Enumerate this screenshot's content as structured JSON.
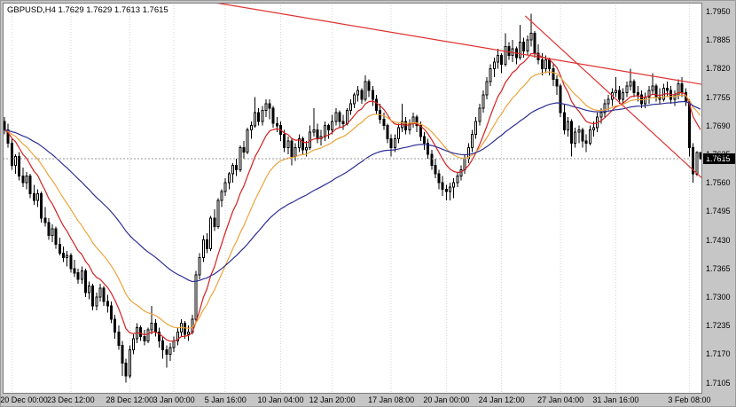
{
  "header": {
    "text": "GBPUSD,H4 1.7629 1.7629 1.7613 1.7615"
  },
  "colors": {
    "background": "#c6c6c6",
    "plot_bg": "#ffffff",
    "candle_up": "#ffffff",
    "candle_down": "#000000",
    "candle_outline": "#000000",
    "grid": "#d6d6d6",
    "bid_line": "#9a9a9a",
    "border": "#7a7a7a",
    "tag_bg": "#000000",
    "tag_fg": "#ffffff"
  },
  "chart_data": {
    "type": "candlestick",
    "symbol": "GBPUSD",
    "timeframe": "H4",
    "current": {
      "open": "1.7629",
      "high": "1.7629",
      "low": "1.7613",
      "close": "1.7615"
    },
    "bid": 1.7615,
    "price_axis": {
      "top": 1.797,
      "bottom": 1.708,
      "labels": [
        "1.7950",
        "1.7885",
        "1.7820",
        "1.7755",
        "1.7690",
        "1.7625",
        "1.7560",
        "1.7495",
        "1.7430",
        "1.7365",
        "1.7300",
        "1.7235",
        "1.7170",
        "1.7105"
      ]
    },
    "time_axis": {
      "labels": [
        {
          "text": "20 Dec 00:00",
          "bar": 2
        },
        {
          "text": "23 Dec 12:00",
          "bar": 18
        },
        {
          "text": "28 Dec 12:00",
          "bar": 34
        },
        {
          "text": "3 Jan 00:00",
          "bar": 46
        },
        {
          "text": "5 Jan 16:00",
          "bar": 60
        },
        {
          "text": "10 Jan 04:00",
          "bar": 75
        },
        {
          "text": "12 Jan 20:00",
          "bar": 89
        },
        {
          "text": "17 Jan 08:00",
          "bar": 105
        },
        {
          "text": "20 Jan 00:00",
          "bar": 120
        },
        {
          "text": "24 Jan 12:00",
          "bar": 135
        },
        {
          "text": "27 Jan 04:00",
          "bar": 151
        },
        {
          "text": "31 Jan 16:00",
          "bar": 166
        },
        {
          "text": "3 Feb 08:00",
          "bar": 186
        }
      ]
    },
    "indicators": [
      {
        "name": "ma-fast-red",
        "type": "ema",
        "period": 10,
        "color": "#d51f1f"
      },
      {
        "name": "ma-medium-orange",
        "type": "ema",
        "period": 21,
        "color": "#eda33b"
      },
      {
        "name": "ma-slow-navy",
        "type": "ema",
        "period": 55,
        "color": "#2e2e94"
      }
    ],
    "trendlines": [
      {
        "name": "descending-resistance-line",
        "bar1": 57.7,
        "price1": 1.797,
        "bar2": 190,
        "price2": 1.7784,
        "color": "#e03131"
      },
      {
        "name": "descending-channel-support-line",
        "bar1": 141.9,
        "price1": 1.794,
        "bar2": 190,
        "price2": 1.757,
        "color": "#e03131"
      }
    ],
    "candles": [
      [
        1.77,
        1.771,
        1.767,
        1.768
      ],
      [
        1.768,
        1.7695,
        1.764,
        1.765
      ],
      [
        1.765,
        1.766,
        1.759,
        1.76
      ],
      [
        1.76,
        1.7625,
        1.758,
        1.762
      ],
      [
        1.762,
        1.763,
        1.7565,
        1.7575
      ],
      [
        1.7575,
        1.7595,
        1.755,
        1.756
      ],
      [
        1.756,
        1.7585,
        1.7545,
        1.7575
      ],
      [
        1.7575,
        1.758,
        1.7525,
        1.7535
      ],
      [
        1.7535,
        1.7555,
        1.751,
        1.752
      ],
      [
        1.752,
        1.7545,
        1.7505,
        1.7535
      ],
      [
        1.7535,
        1.754,
        1.747,
        1.748
      ],
      [
        1.748,
        1.7505,
        1.746,
        1.747
      ],
      [
        1.747,
        1.748,
        1.743,
        1.744
      ],
      [
        1.744,
        1.7465,
        1.7425,
        1.7455
      ],
      [
        1.7455,
        1.746,
        1.741,
        1.742
      ],
      [
        1.742,
        1.7435,
        1.7395,
        1.74
      ],
      [
        1.74,
        1.7415,
        1.738,
        1.739
      ],
      [
        1.739,
        1.7405,
        1.737,
        1.7395
      ],
      [
        1.7395,
        1.74,
        1.7355,
        1.7365
      ],
      [
        1.7365,
        1.7385,
        1.7345,
        1.7355
      ],
      [
        1.7355,
        1.7365,
        1.733,
        1.734
      ],
      [
        1.734,
        1.737,
        1.733,
        1.736
      ],
      [
        1.736,
        1.7365,
        1.73,
        1.731
      ],
      [
        1.731,
        1.7335,
        1.7295,
        1.7325
      ],
      [
        1.7325,
        1.733,
        1.727,
        1.728
      ],
      [
        1.728,
        1.731,
        1.727,
        1.73
      ],
      [
        1.73,
        1.733,
        1.729,
        1.732
      ],
      [
        1.732,
        1.7325,
        1.728,
        1.729
      ],
      [
        1.729,
        1.7305,
        1.7265,
        1.728
      ],
      [
        1.728,
        1.729,
        1.724,
        1.725
      ],
      [
        1.725,
        1.726,
        1.7205,
        1.722
      ],
      [
        1.722,
        1.7235,
        1.718,
        1.719
      ],
      [
        1.719,
        1.72,
        1.712,
        1.715
      ],
      [
        1.715,
        1.716,
        1.7105,
        1.712
      ],
      [
        1.712,
        1.719,
        1.7115,
        1.718
      ],
      [
        1.718,
        1.7215,
        1.717,
        1.7205
      ],
      [
        1.7205,
        1.724,
        1.7195,
        1.723
      ],
      [
        1.723,
        1.7235,
        1.72,
        1.721
      ],
      [
        1.721,
        1.7225,
        1.719,
        1.72
      ],
      [
        1.72,
        1.723,
        1.7195,
        1.7225
      ],
      [
        1.7225,
        1.728,
        1.7215,
        1.724
      ],
      [
        1.724,
        1.725,
        1.721,
        1.722
      ],
      [
        1.722,
        1.723,
        1.7185,
        1.72
      ],
      [
        1.72,
        1.721,
        1.716,
        1.718
      ],
      [
        1.718,
        1.719,
        1.714,
        1.717
      ],
      [
        1.717,
        1.7195,
        1.7155,
        1.7185
      ],
      [
        1.7185,
        1.721,
        1.7175,
        1.72
      ],
      [
        1.72,
        1.723,
        1.719,
        1.722
      ],
      [
        1.722,
        1.725,
        1.721,
        1.724
      ],
      [
        1.724,
        1.7245,
        1.7205,
        1.7215
      ],
      [
        1.7215,
        1.7235,
        1.72,
        1.722
      ],
      [
        1.722,
        1.726,
        1.7215,
        1.725
      ],
      [
        1.725,
        1.736,
        1.7245,
        1.735
      ],
      [
        1.735,
        1.74,
        1.734,
        1.739
      ],
      [
        1.739,
        1.744,
        1.738,
        1.743
      ],
      [
        1.743,
        1.7445,
        1.74,
        1.741
      ],
      [
        1.741,
        1.7485,
        1.7405,
        1.748
      ],
      [
        1.748,
        1.75,
        1.745,
        1.746
      ],
      [
        1.746,
        1.7525,
        1.7455,
        1.752
      ],
      [
        1.752,
        1.7545,
        1.7505,
        1.754
      ],
      [
        1.754,
        1.757,
        1.753,
        1.756
      ],
      [
        1.756,
        1.7585,
        1.7545,
        1.758
      ],
      [
        1.758,
        1.7605,
        1.756,
        1.76
      ],
      [
        1.76,
        1.7615,
        1.7575,
        1.759
      ],
      [
        1.759,
        1.7645,
        1.7585,
        1.764
      ],
      [
        1.764,
        1.7655,
        1.7615,
        1.763
      ],
      [
        1.763,
        1.7685,
        1.7625,
        1.768
      ],
      [
        1.768,
        1.77,
        1.766,
        1.769
      ],
      [
        1.769,
        1.7755,
        1.7685,
        1.772
      ],
      [
        1.772,
        1.773,
        1.769,
        1.77
      ],
      [
        1.77,
        1.7735,
        1.769,
        1.7725
      ],
      [
        1.7725,
        1.775,
        1.771,
        1.774
      ],
      [
        1.774,
        1.775,
        1.7705,
        1.773
      ],
      [
        1.773,
        1.7735,
        1.7685,
        1.7695
      ],
      [
        1.7695,
        1.771,
        1.7675,
        1.769
      ],
      [
        1.769,
        1.77,
        1.7655,
        1.767
      ],
      [
        1.767,
        1.768,
        1.763,
        1.764
      ],
      [
        1.764,
        1.7665,
        1.7625,
        1.7655
      ],
      [
        1.7655,
        1.766,
        1.76,
        1.762
      ],
      [
        1.762,
        1.765,
        1.761,
        1.764
      ],
      [
        1.764,
        1.767,
        1.763,
        1.766
      ],
      [
        1.766,
        1.7665,
        1.7625,
        1.7635
      ],
      [
        1.7635,
        1.7655,
        1.762,
        1.764
      ],
      [
        1.764,
        1.769,
        1.7635,
        1.7675
      ],
      [
        1.7675,
        1.773,
        1.7665,
        1.768
      ],
      [
        1.768,
        1.7695,
        1.765,
        1.766
      ],
      [
        1.766,
        1.768,
        1.7645,
        1.7665
      ],
      [
        1.7665,
        1.77,
        1.7655,
        1.769
      ],
      [
        1.769,
        1.7695,
        1.766,
        1.768
      ],
      [
        1.768,
        1.7715,
        1.767,
        1.77
      ],
      [
        1.77,
        1.773,
        1.769,
        1.772
      ],
      [
        1.772,
        1.7725,
        1.7685,
        1.77
      ],
      [
        1.77,
        1.7715,
        1.768,
        1.7695
      ],
      [
        1.7695,
        1.773,
        1.769,
        1.7725
      ],
      [
        1.7725,
        1.775,
        1.7715,
        1.774
      ],
      [
        1.774,
        1.7765,
        1.773,
        1.776
      ],
      [
        1.776,
        1.778,
        1.7745,
        1.777
      ],
      [
        1.777,
        1.7775,
        1.774,
        1.775
      ],
      [
        1.775,
        1.7805,
        1.7745,
        1.779
      ],
      [
        1.779,
        1.7795,
        1.7755,
        1.777
      ],
      [
        1.777,
        1.778,
        1.7735,
        1.775
      ],
      [
        1.775,
        1.776,
        1.7715,
        1.7725
      ],
      [
        1.7725,
        1.774,
        1.7695,
        1.7705
      ],
      [
        1.7705,
        1.772,
        1.768,
        1.769
      ],
      [
        1.769,
        1.7695,
        1.765,
        1.766
      ],
      [
        1.766,
        1.767,
        1.762,
        1.764
      ],
      [
        1.764,
        1.767,
        1.763,
        1.766
      ],
      [
        1.766,
        1.7695,
        1.765,
        1.7685
      ],
      [
        1.7685,
        1.774,
        1.7675,
        1.77
      ],
      [
        1.77,
        1.771,
        1.767,
        1.768
      ],
      [
        1.768,
        1.7705,
        1.767,
        1.7695
      ],
      [
        1.7695,
        1.772,
        1.7685,
        1.771
      ],
      [
        1.771,
        1.7715,
        1.7675,
        1.769
      ],
      [
        1.769,
        1.77,
        1.7655,
        1.7665
      ],
      [
        1.7665,
        1.7675,
        1.7635,
        1.765
      ],
      [
        1.765,
        1.766,
        1.7615,
        1.7625
      ],
      [
        1.7625,
        1.7635,
        1.759,
        1.76
      ],
      [
        1.76,
        1.7615,
        1.757,
        1.758
      ],
      [
        1.758,
        1.759,
        1.7545,
        1.756
      ],
      [
        1.756,
        1.7575,
        1.753,
        1.7545
      ],
      [
        1.7545,
        1.7555,
        1.752,
        1.754
      ],
      [
        1.754,
        1.756,
        1.752,
        1.755
      ],
      [
        1.755,
        1.757,
        1.7525,
        1.756
      ],
      [
        1.756,
        1.7585,
        1.755,
        1.7575
      ],
      [
        1.7575,
        1.76,
        1.7565,
        1.759
      ],
      [
        1.759,
        1.7625,
        1.758,
        1.7615
      ],
      [
        1.7615,
        1.765,
        1.7605,
        1.764
      ],
      [
        1.764,
        1.768,
        1.763,
        1.767
      ],
      [
        1.767,
        1.771,
        1.766,
        1.77
      ],
      [
        1.77,
        1.774,
        1.769,
        1.773
      ],
      [
        1.773,
        1.777,
        1.772,
        1.776
      ],
      [
        1.776,
        1.78,
        1.775,
        1.779
      ],
      [
        1.779,
        1.783,
        1.778,
        1.782
      ],
      [
        1.782,
        1.7845,
        1.78,
        1.7835
      ],
      [
        1.7835,
        1.7865,
        1.782,
        1.785
      ],
      [
        1.785,
        1.7855,
        1.781,
        1.783
      ],
      [
        1.783,
        1.79,
        1.7825,
        1.787
      ],
      [
        1.787,
        1.788,
        1.784,
        1.785
      ],
      [
        1.785,
        1.7885,
        1.7835,
        1.7865
      ],
      [
        1.7865,
        1.787,
        1.783,
        1.7845
      ],
      [
        1.7845,
        1.792,
        1.784,
        1.788
      ],
      [
        1.788,
        1.789,
        1.7845,
        1.786
      ],
      [
        1.786,
        1.7895,
        1.785,
        1.7885
      ],
      [
        1.7885,
        1.7945,
        1.787,
        1.79
      ],
      [
        1.79,
        1.7905,
        1.7845,
        1.7855
      ],
      [
        1.7855,
        1.7875,
        1.783,
        1.784
      ],
      [
        1.784,
        1.7855,
        1.7805,
        1.782
      ],
      [
        1.782,
        1.785,
        1.781,
        1.784
      ],
      [
        1.784,
        1.7845,
        1.7805,
        1.782
      ],
      [
        1.782,
        1.783,
        1.778,
        1.7795
      ],
      [
        1.7795,
        1.7805,
        1.776,
        1.778
      ],
      [
        1.778,
        1.7785,
        1.771,
        1.772
      ],
      [
        1.772,
        1.774,
        1.767,
        1.768
      ],
      [
        1.768,
        1.771,
        1.7665,
        1.77
      ],
      [
        1.77,
        1.7705,
        1.762,
        1.765
      ],
      [
        1.765,
        1.7685,
        1.764,
        1.7675
      ],
      [
        1.7675,
        1.769,
        1.765,
        1.768
      ],
      [
        1.768,
        1.7685,
        1.764,
        1.7655
      ],
      [
        1.7655,
        1.767,
        1.763,
        1.765
      ],
      [
        1.765,
        1.769,
        1.7645,
        1.768
      ],
      [
        1.768,
        1.77,
        1.7665,
        1.7685
      ],
      [
        1.7685,
        1.772,
        1.7675,
        1.771
      ],
      [
        1.771,
        1.773,
        1.7695,
        1.772
      ],
      [
        1.772,
        1.775,
        1.771,
        1.774
      ],
      [
        1.774,
        1.776,
        1.7725,
        1.775
      ],
      [
        1.775,
        1.7775,
        1.7735,
        1.7765
      ],
      [
        1.7765,
        1.78,
        1.7755,
        1.777
      ],
      [
        1.777,
        1.778,
        1.774,
        1.775
      ],
      [
        1.775,
        1.7775,
        1.774,
        1.7765
      ],
      [
        1.7765,
        1.779,
        1.7755,
        1.778
      ],
      [
        1.778,
        1.782,
        1.777,
        1.779
      ],
      [
        1.779,
        1.7795,
        1.7755,
        1.7765
      ],
      [
        1.7765,
        1.778,
        1.7745,
        1.776
      ],
      [
        1.776,
        1.777,
        1.773,
        1.774
      ],
      [
        1.774,
        1.7765,
        1.773,
        1.7755
      ],
      [
        1.7755,
        1.778,
        1.774,
        1.777
      ],
      [
        1.777,
        1.781,
        1.776,
        1.778
      ],
      [
        1.778,
        1.7785,
        1.7745,
        1.7755
      ],
      [
        1.7755,
        1.7775,
        1.774,
        1.775
      ],
      [
        1.775,
        1.7785,
        1.7745,
        1.7775
      ],
      [
        1.7775,
        1.779,
        1.7755,
        1.777
      ],
      [
        1.777,
        1.778,
        1.774,
        1.775
      ],
      [
        1.775,
        1.777,
        1.7735,
        1.776
      ],
      [
        1.776,
        1.7795,
        1.775,
        1.7785
      ],
      [
        1.7785,
        1.78,
        1.7755,
        1.7765
      ],
      [
        1.7765,
        1.7775,
        1.7735,
        1.7745
      ],
      [
        1.7745,
        1.775,
        1.762,
        1.764
      ],
      [
        1.764,
        1.765,
        1.756,
        1.758
      ],
      [
        1.758,
        1.7632,
        1.7575,
        1.7629
      ],
      [
        1.7629,
        1.7629,
        1.7613,
        1.7615
      ]
    ]
  }
}
